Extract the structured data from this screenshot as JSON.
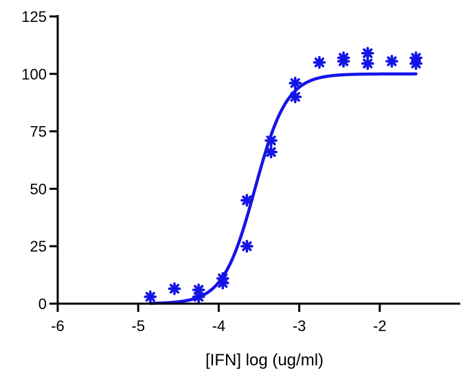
{
  "chart_data": {
    "type": "scatter",
    "title": "",
    "xlabel": "[IFN] log (ug/ml)",
    "ylabel": "",
    "xlim": [
      -6,
      -1
    ],
    "ylim": [
      0,
      125
    ],
    "x_ticks": [
      -6,
      -5,
      -4,
      -3,
      -2
    ],
    "y_ticks": [
      0,
      25,
      50,
      75,
      100,
      125
    ],
    "x_tick_labels": [
      "-6",
      "-5",
      "-4",
      "-3",
      "-2"
    ],
    "y_tick_labels": [
      "0",
      "25",
      "50",
      "75",
      "100",
      "125"
    ],
    "grid": false,
    "legend": "none",
    "colors": {
      "series": "#1414e6",
      "axis": "#000000"
    },
    "series": [
      {
        "marker": "asterisk",
        "points": [
          {
            "x": -4.85,
            "y": 3
          },
          {
            "x": -4.55,
            "y": 6.5
          },
          {
            "x": -4.25,
            "y": 3
          },
          {
            "x": -4.25,
            "y": 6
          },
          {
            "x": -3.95,
            "y": 9
          },
          {
            "x": -3.95,
            "y": 11
          },
          {
            "x": -3.65,
            "y": 45
          },
          {
            "x": -3.65,
            "y": 25
          },
          {
            "x": -3.35,
            "y": 71
          },
          {
            "x": -3.35,
            "y": 66
          },
          {
            "x": -3.05,
            "y": 96
          },
          {
            "x": -3.05,
            "y": 90
          },
          {
            "x": -2.75,
            "y": 105
          },
          {
            "x": -2.45,
            "y": 107
          },
          {
            "x": -2.45,
            "y": 105.5
          },
          {
            "x": -2.15,
            "y": 109
          },
          {
            "x": -2.15,
            "y": 104.5
          },
          {
            "x": -1.85,
            "y": 105.5
          },
          {
            "x": -1.55,
            "y": 107
          },
          {
            "x": -1.55,
            "y": 104.5
          }
        ],
        "fit_curve": {
          "model": "sigmoidal dose-response",
          "bottom": 0,
          "top": 100,
          "logEC50": -3.55,
          "hill_slope": 2.2,
          "x_range": [
            -4.85,
            -1.55
          ]
        }
      }
    ]
  }
}
